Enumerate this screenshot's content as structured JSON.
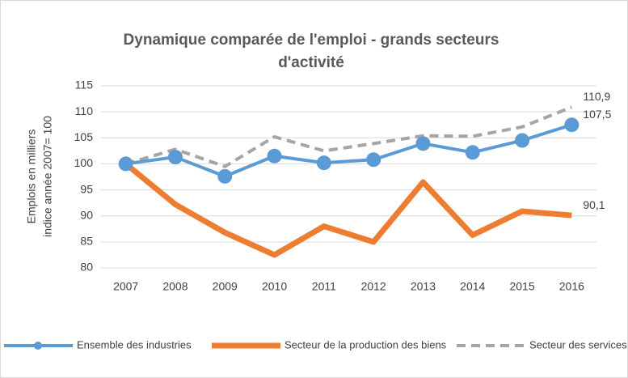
{
  "chart_data": {
    "type": "line",
    "title": [
      "Dynamique comparée de l'emploi - grands secteurs",
      "d'activité"
    ],
    "y_label": [
      "Emplois en milliers",
      "indice année 2007= 100"
    ],
    "categories": [
      "2007",
      "2008",
      "2009",
      "2010",
      "2011",
      "2012",
      "2013",
      "2014",
      "2015",
      "2016"
    ],
    "series": [
      {
        "name": "Ensemble des industries",
        "color": "#5b9bd5",
        "style": "marker",
        "values": [
          100,
          101.3,
          97.6,
          101.5,
          100.2,
          100.8,
          103.9,
          102.2,
          104.5,
          107.5
        ],
        "value_labels": [
          null,
          null,
          null,
          null,
          null,
          null,
          null,
          null,
          null,
          "107,5"
        ]
      },
      {
        "name": "Secteur de la production des biens",
        "color": "#ed7d31",
        "style": "thick",
        "values": [
          100,
          92.2,
          86.8,
          82.5,
          88.0,
          85.0,
          96.5,
          86.3,
          90.9,
          90.1
        ],
        "value_labels": [
          null,
          null,
          null,
          null,
          null,
          null,
          null,
          null,
          null,
          "90,1"
        ]
      },
      {
        "name": "Secteur des services",
        "color": "#a5a5a5",
        "style": "dashed",
        "values": [
          100,
          102.8,
          99.5,
          105.2,
          102.5,
          103.9,
          105.4,
          105.3,
          107.1,
          110.9
        ],
        "value_labels": [
          null,
          null,
          null,
          null,
          null,
          null,
          null,
          null,
          null,
          "110,9"
        ]
      }
    ],
    "ylim": [
      80,
      115
    ],
    "yticks": [
      80,
      85,
      90,
      95,
      100,
      105,
      110,
      115
    ],
    "grid": true,
    "legend": "bottom"
  }
}
